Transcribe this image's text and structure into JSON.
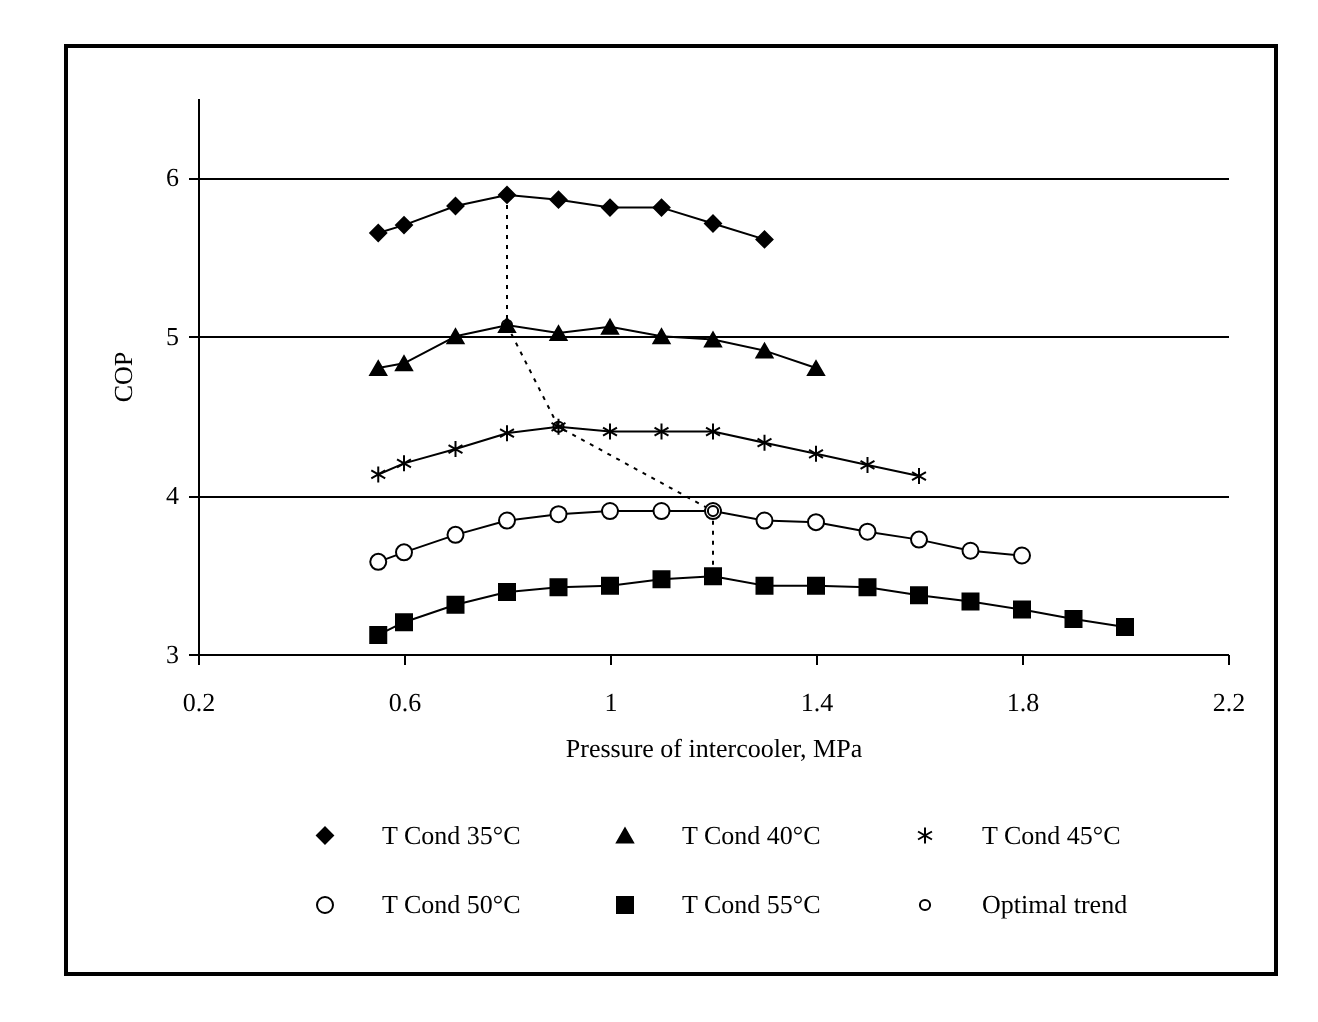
{
  "chart_data": {
    "type": "line",
    "xlabel": "Pressure of intercooler, MPa",
    "ylabel": "COP",
    "xlim": [
      0.2,
      2.2
    ],
    "xticks": [
      0.2,
      0.6,
      1,
      1.4,
      1.8,
      2.2
    ],
    "ylim": [
      3,
      6.5
    ],
    "yticks": [
      3,
      4,
      5,
      6
    ],
    "grid": "y",
    "legend": "bottom",
    "series": [
      {
        "name": "T Cond 35°C",
        "color": "#000000",
        "marker": "diamond",
        "line_style": "solid",
        "x": [
          0.55,
          0.6,
          0.7,
          0.8,
          0.9,
          1.0,
          1.1,
          1.2,
          1.3
        ],
        "values": [
          5.65,
          5.7,
          5.82,
          5.89,
          5.86,
          5.81,
          5.81,
          5.71,
          5.61
        ]
      },
      {
        "name": "T Cond 40°C",
        "color": "#000000",
        "marker": "triangle",
        "line_style": "solid",
        "x": [
          0.55,
          0.6,
          0.7,
          0.8,
          0.9,
          1.0,
          1.1,
          1.2,
          1.3,
          1.4
        ],
        "values": [
          4.8,
          4.83,
          5.0,
          5.07,
          5.02,
          5.06,
          5.0,
          4.98,
          4.91,
          4.8
        ]
      },
      {
        "name": "T Cond 45°C",
        "color": "#000000",
        "marker": "cross",
        "line_style": "solid",
        "x": [
          0.55,
          0.6,
          0.7,
          0.8,
          0.9,
          1.0,
          1.1,
          1.2,
          1.3,
          1.4,
          1.5,
          1.6
        ],
        "values": [
          4.13,
          4.2,
          4.29,
          4.39,
          4.43,
          4.4,
          4.4,
          4.4,
          4.33,
          4.26,
          4.19,
          4.12
        ]
      },
      {
        "name": "T Cond 50°C",
        "color": "#000000",
        "marker": "circle",
        "line_style": "solid",
        "x": [
          0.55,
          0.6,
          0.7,
          0.8,
          0.9,
          1.0,
          1.1,
          1.2,
          1.3,
          1.4,
          1.5,
          1.6,
          1.7,
          1.8
        ],
        "values": [
          3.58,
          3.64,
          3.75,
          3.84,
          3.88,
          3.9,
          3.9,
          3.9,
          3.84,
          3.83,
          3.77,
          3.72,
          3.65,
          3.62
        ]
      },
      {
        "name": "T Cond 55°C",
        "color": "#000000",
        "marker": "square",
        "line_style": "solid",
        "x": [
          0.55,
          0.6,
          0.7,
          0.8,
          0.9,
          1.0,
          1.1,
          1.2,
          1.3,
          1.4,
          1.5,
          1.6,
          1.7,
          1.8,
          1.9,
          2.0
        ],
        "values": [
          3.12,
          3.2,
          3.31,
          3.39,
          3.42,
          3.43,
          3.47,
          3.49,
          3.43,
          3.43,
          3.42,
          3.37,
          3.33,
          3.28,
          3.22,
          3.17
        ]
      },
      {
        "name": "Optimal trend",
        "color": "#000000",
        "marker": "circle",
        "line_style": "dotted",
        "x": [
          0.8,
          0.8,
          0.9,
          1.2,
          1.2
        ],
        "values": [
          5.89,
          5.07,
          4.43,
          3.9,
          3.49
        ]
      }
    ]
  }
}
